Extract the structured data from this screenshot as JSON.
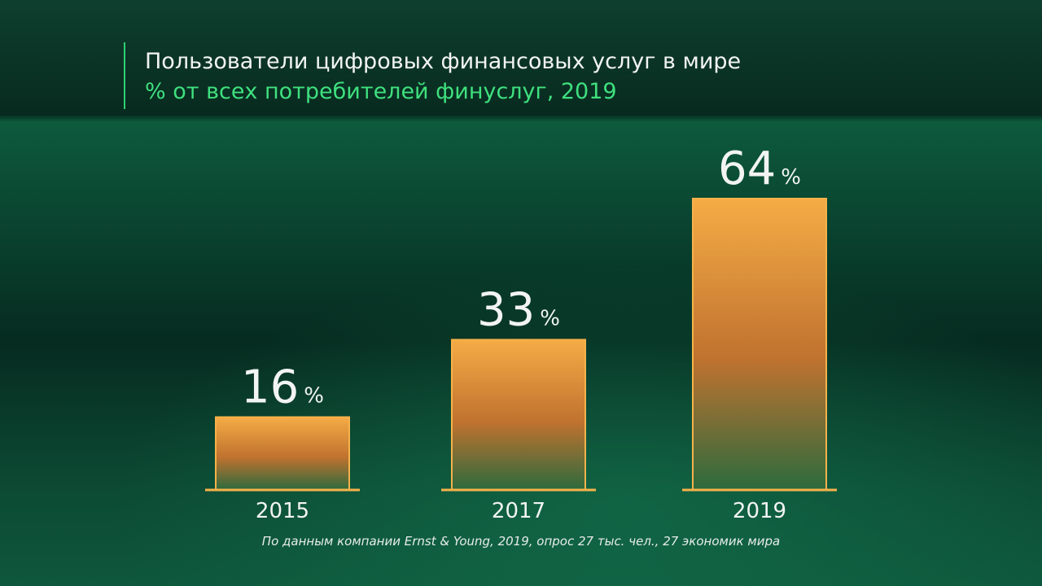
{
  "chart_data": {
    "type": "bar",
    "title": "Пользователи цифровых финансовых услуг в мире",
    "subtitle": "% от всех потребителей финуслуг, 2019",
    "categories": [
      "2015",
      "2017",
      "2019"
    ],
    "values": [
      16,
      33,
      64
    ],
    "value_unit": "%",
    "ylim": [
      0,
      70
    ],
    "grid": false,
    "source": "По данным компании Ernst & Young, 2019, опрос 27 тыс. чел., 27 экономик мира"
  },
  "colors": {
    "bar_top": "#f5ac45",
    "bar_mid": "#bf7132",
    "bar_bottom": "#2f6a3e",
    "bar_border": "#f6b24a",
    "accent": "#3fe07e",
    "text": "#f2f4f3"
  }
}
